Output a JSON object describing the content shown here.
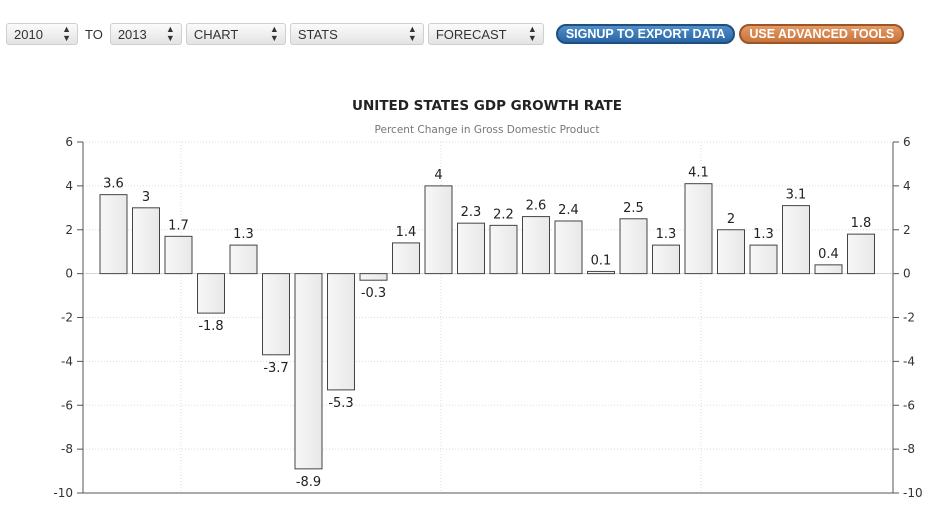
{
  "toolbar": {
    "from_year": "2010",
    "to_label": "TO",
    "to_year": "2013",
    "chart_select": "CHART",
    "stats_select": "STATS",
    "forecast_select": "FORECAST",
    "signup_button": "SIGNUP TO EXPORT DATA",
    "advanced_button": "USE ADVANCED TOOLS",
    "signup_color": "#2a66a6",
    "advanced_color": "#c9733c"
  },
  "chart_data": {
    "type": "bar",
    "title": "UNITED STATES GDP GROWTH RATE",
    "subtitle": "Percent Change in Gross Domestic Product",
    "values": [
      3.6,
      3,
      1.7,
      -1.8,
      1.3,
      -3.7,
      -8.9,
      -5.3,
      -0.3,
      1.4,
      4,
      2.3,
      2.2,
      2.6,
      2.4,
      0.1,
      2.5,
      1.3,
      4.1,
      2,
      1.3,
      3.1,
      0.4,
      1.8
    ],
    "value_labels": [
      "3.6",
      "3",
      "1.7",
      "-1.8",
      "1.3",
      "-3.7",
      "-8.9",
      "-5.3",
      "-0.3",
      "1.4",
      "4",
      "2.3",
      "2.2",
      "2.6",
      "2.4",
      "0.1",
      "2.5",
      "1.3",
      "4.1",
      "2",
      "1.3",
      "3.1",
      "0.4",
      "1.8"
    ],
    "ylim": [
      -10,
      6
    ],
    "yticks": [
      6,
      4,
      2,
      0,
      -2,
      -4,
      -6,
      -8,
      -10
    ],
    "xlabel": "",
    "ylabel": "",
    "grid": true,
    "bar_color": "#e8e8e8"
  }
}
